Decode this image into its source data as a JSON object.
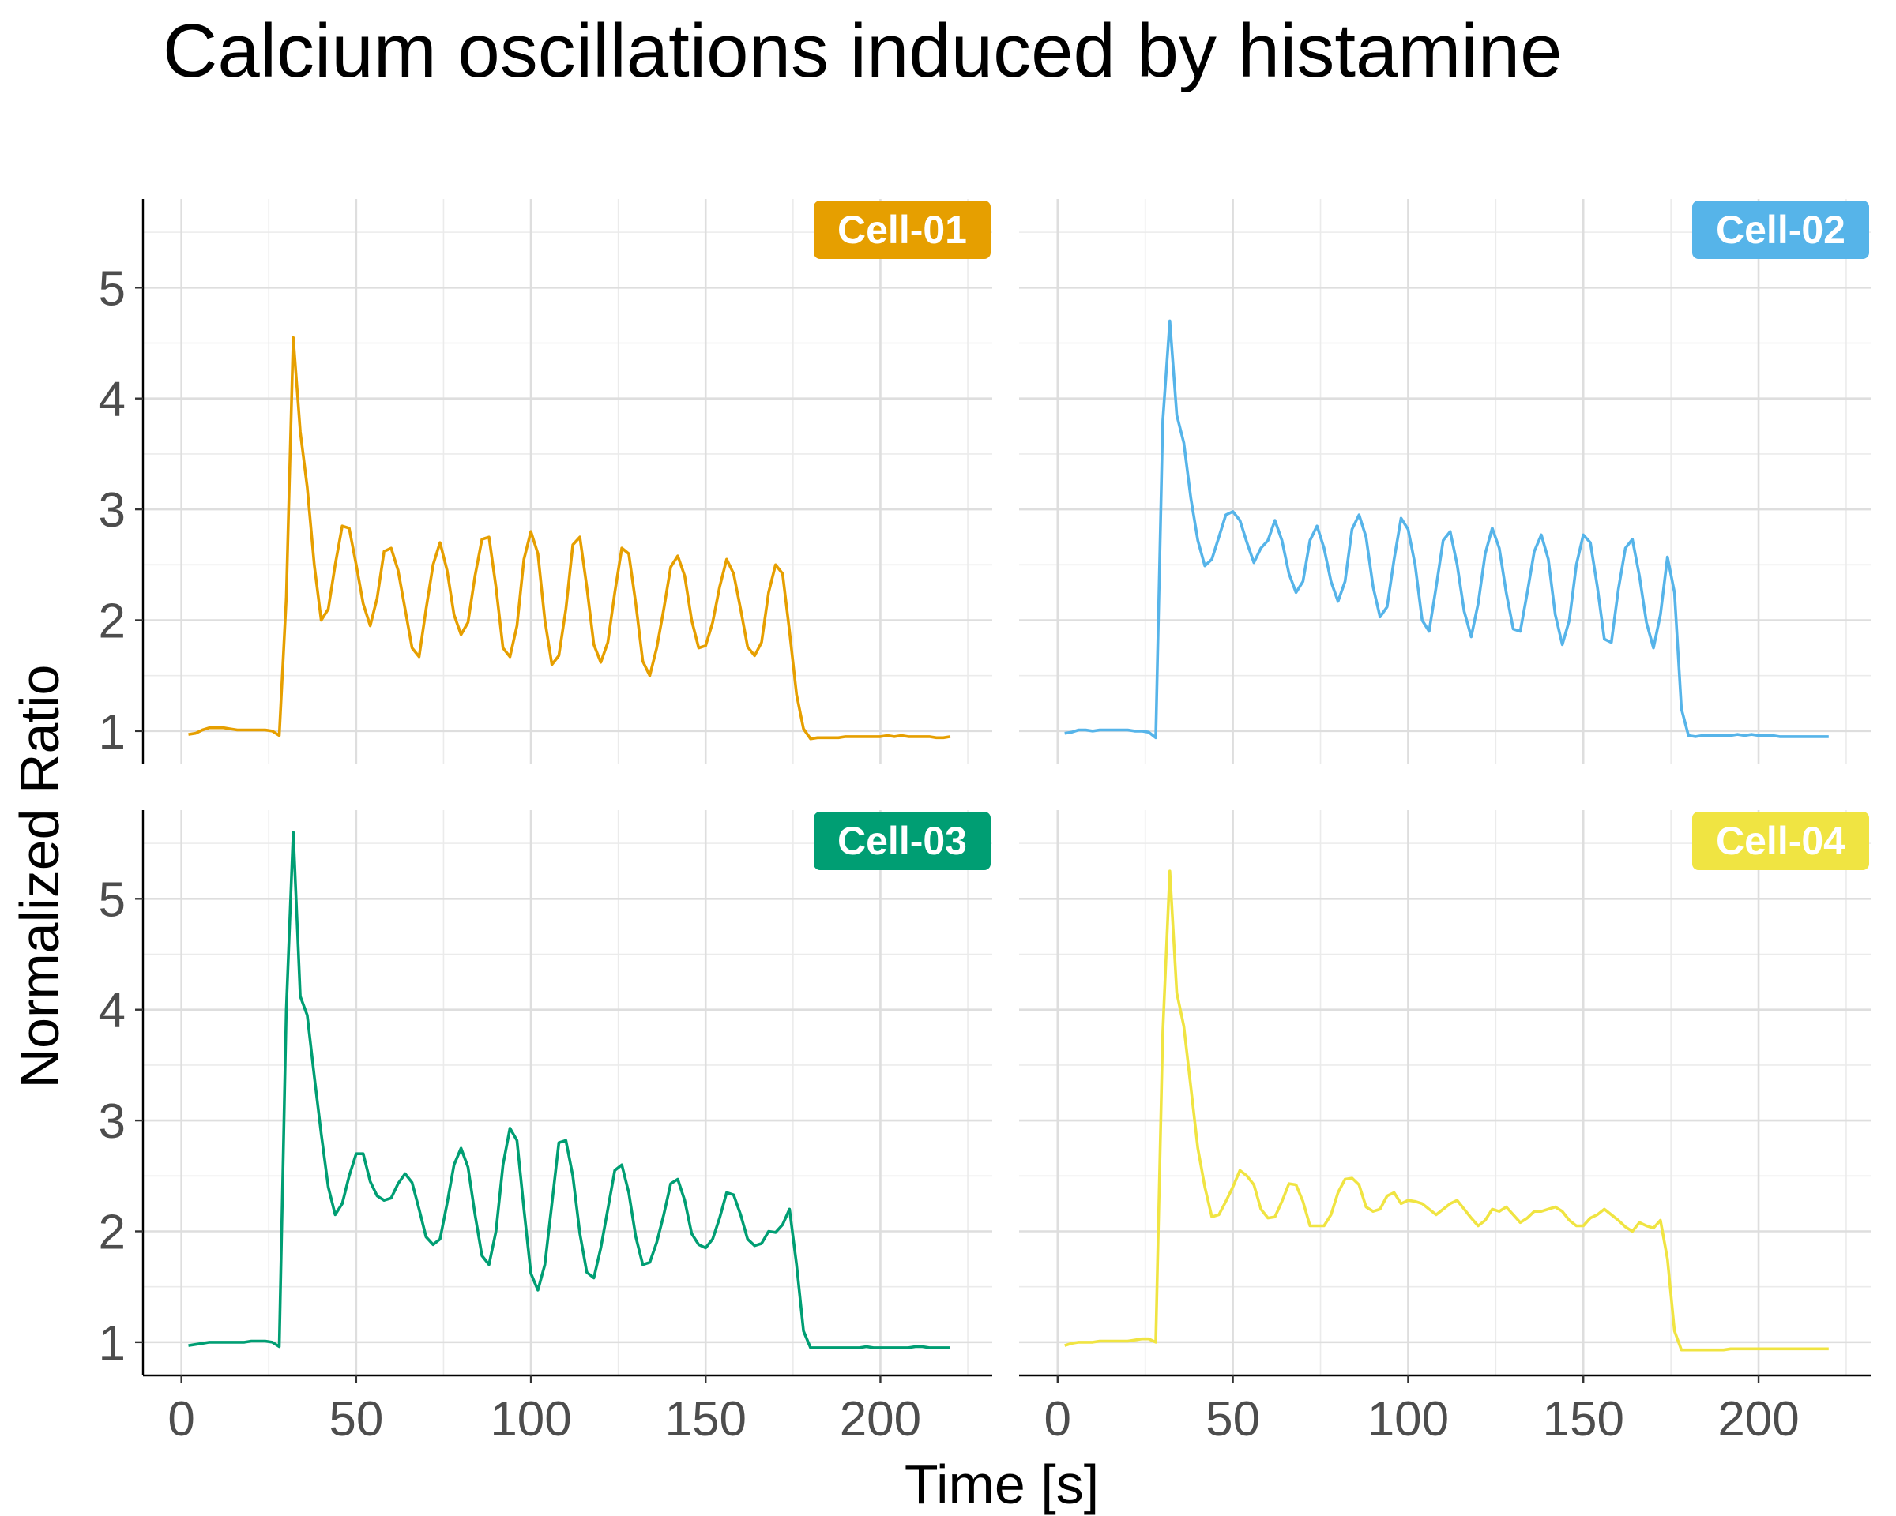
{
  "chart_data": {
    "type": "line",
    "title": "Calcium oscillations induced by histamine",
    "xlabel": "Time [s]",
    "ylabel": "Normalized Ratio",
    "xlim": [
      -11,
      232
    ],
    "ylim": [
      0.7,
      5.8
    ],
    "xticks": [
      0,
      50,
      100,
      150,
      200
    ],
    "yticks": [
      1,
      2,
      3,
      4,
      5
    ],
    "grid": true,
    "layout": "2x2 facets, shared axes",
    "panels": [
      {
        "name": "Cell-01",
        "color": "#E69F00",
        "x": [
          2,
          4,
          6,
          8,
          10,
          12,
          14,
          16,
          18,
          20,
          22,
          24,
          26,
          28,
          30,
          32,
          34,
          36,
          38,
          40,
          42,
          44,
          46,
          48,
          50,
          52,
          54,
          56,
          58,
          60,
          62,
          64,
          66,
          68,
          70,
          72,
          74,
          76,
          78,
          80,
          82,
          84,
          86,
          88,
          90,
          92,
          94,
          96,
          98,
          100,
          102,
          104,
          106,
          108,
          110,
          112,
          114,
          116,
          118,
          120,
          122,
          124,
          126,
          128,
          130,
          132,
          134,
          136,
          138,
          140,
          142,
          144,
          146,
          148,
          150,
          152,
          154,
          156,
          158,
          160,
          162,
          164,
          166,
          168,
          170,
          172,
          174,
          176,
          178,
          180,
          182,
          184,
          186,
          188,
          190,
          192,
          194,
          196,
          198,
          200,
          202,
          204,
          206,
          208,
          210,
          212,
          214,
          216,
          218,
          220
        ],
        "y": [
          0.97,
          0.98,
          1.01,
          1.03,
          1.03,
          1.03,
          1.02,
          1.01,
          1.01,
          1.01,
          1.01,
          1.01,
          1.0,
          0.96,
          2.2,
          4.55,
          3.7,
          3.2,
          2.5,
          2.0,
          2.1,
          2.5,
          2.85,
          2.83,
          2.5,
          2.15,
          1.95,
          2.2,
          2.62,
          2.65,
          2.45,
          2.1,
          1.75,
          1.67,
          2.1,
          2.5,
          2.7,
          2.45,
          2.05,
          1.87,
          1.98,
          2.4,
          2.73,
          2.75,
          2.3,
          1.75,
          1.67,
          1.95,
          2.55,
          2.8,
          2.6,
          2.0,
          1.6,
          1.68,
          2.1,
          2.68,
          2.75,
          2.3,
          1.78,
          1.62,
          1.8,
          2.25,
          2.65,
          2.6,
          2.15,
          1.63,
          1.5,
          1.75,
          2.1,
          2.48,
          2.58,
          2.4,
          2.0,
          1.75,
          1.77,
          1.98,
          2.3,
          2.55,
          2.42,
          2.1,
          1.76,
          1.68,
          1.8,
          2.25,
          2.5,
          2.42,
          1.9,
          1.33,
          1.02,
          0.93,
          0.94,
          0.94,
          0.94,
          0.94,
          0.95,
          0.95,
          0.95,
          0.95,
          0.95,
          0.95,
          0.96,
          0.95,
          0.96,
          0.95,
          0.95,
          0.95,
          0.95,
          0.94,
          0.94,
          0.95
        ]
      },
      {
        "name": "Cell-02",
        "color": "#56B4E9",
        "x": [
          2,
          4,
          6,
          8,
          10,
          12,
          14,
          16,
          18,
          20,
          22,
          24,
          26,
          28,
          30,
          32,
          34,
          36,
          38,
          40,
          42,
          44,
          46,
          48,
          50,
          52,
          54,
          56,
          58,
          60,
          62,
          64,
          66,
          68,
          70,
          72,
          74,
          76,
          78,
          80,
          82,
          84,
          86,
          88,
          90,
          92,
          94,
          96,
          98,
          100,
          102,
          104,
          106,
          108,
          110,
          112,
          114,
          116,
          118,
          120,
          122,
          124,
          126,
          128,
          130,
          132,
          134,
          136,
          138,
          140,
          142,
          144,
          146,
          148,
          150,
          152,
          154,
          156,
          158,
          160,
          162,
          164,
          166,
          168,
          170,
          172,
          174,
          176,
          178,
          180,
          182,
          184,
          186,
          188,
          190,
          192,
          194,
          196,
          198,
          200,
          202,
          204,
          206,
          208,
          210,
          212,
          214,
          216,
          218,
          220
        ],
        "y": [
          0.98,
          0.99,
          1.01,
          1.01,
          1.0,
          1.01,
          1.01,
          1.01,
          1.01,
          1.01,
          1.0,
          1.0,
          0.99,
          0.94,
          3.8,
          4.7,
          3.85,
          3.6,
          3.1,
          2.72,
          2.49,
          2.55,
          2.75,
          2.95,
          2.98,
          2.9,
          2.7,
          2.52,
          2.65,
          2.72,
          2.9,
          2.72,
          2.42,
          2.25,
          2.35,
          2.72,
          2.85,
          2.65,
          2.35,
          2.17,
          2.35,
          2.82,
          2.95,
          2.75,
          2.3,
          2.03,
          2.12,
          2.55,
          2.92,
          2.82,
          2.5,
          2.0,
          1.9,
          2.3,
          2.72,
          2.8,
          2.5,
          2.08,
          1.85,
          2.15,
          2.6,
          2.83,
          2.65,
          2.25,
          1.92,
          1.9,
          2.25,
          2.62,
          2.77,
          2.55,
          2.05,
          1.78,
          2.0,
          2.5,
          2.77,
          2.7,
          2.3,
          1.83,
          1.8,
          2.28,
          2.65,
          2.73,
          2.4,
          1.98,
          1.75,
          2.05,
          2.57,
          2.25,
          1.2,
          0.96,
          0.95,
          0.96,
          0.96,
          0.96,
          0.96,
          0.96,
          0.97,
          0.96,
          0.97,
          0.96,
          0.96,
          0.96,
          0.95,
          0.95,
          0.95,
          0.95,
          0.95,
          0.95,
          0.95,
          0.95
        ]
      },
      {
        "name": "Cell-03",
        "color": "#009E73",
        "x": [
          2,
          4,
          6,
          8,
          10,
          12,
          14,
          16,
          18,
          20,
          22,
          24,
          26,
          28,
          30,
          32,
          34,
          36,
          38,
          40,
          42,
          44,
          46,
          48,
          50,
          52,
          54,
          56,
          58,
          60,
          62,
          64,
          66,
          68,
          70,
          72,
          74,
          76,
          78,
          80,
          82,
          84,
          86,
          88,
          90,
          92,
          94,
          96,
          98,
          100,
          102,
          104,
          106,
          108,
          110,
          112,
          114,
          116,
          118,
          120,
          122,
          124,
          126,
          128,
          130,
          132,
          134,
          136,
          138,
          140,
          142,
          144,
          146,
          148,
          150,
          152,
          154,
          156,
          158,
          160,
          162,
          164,
          166,
          168,
          170,
          172,
          174,
          176,
          178,
          180,
          182,
          184,
          186,
          188,
          190,
          192,
          194,
          196,
          198,
          200,
          202,
          204,
          206,
          208,
          210,
          212,
          214,
          216,
          218,
          220
        ],
        "y": [
          0.97,
          0.98,
          0.99,
          1.0,
          1.0,
          1.0,
          1.0,
          1.0,
          1.0,
          1.01,
          1.01,
          1.01,
          1.0,
          0.96,
          4.0,
          5.6,
          4.12,
          3.95,
          3.4,
          2.88,
          2.4,
          2.15,
          2.25,
          2.5,
          2.7,
          2.7,
          2.45,
          2.32,
          2.28,
          2.3,
          2.43,
          2.52,
          2.44,
          2.2,
          1.95,
          1.88,
          1.93,
          2.25,
          2.6,
          2.75,
          2.58,
          2.15,
          1.78,
          1.7,
          2.0,
          2.6,
          2.93,
          2.82,
          2.2,
          1.62,
          1.47,
          1.7,
          2.25,
          2.8,
          2.82,
          2.5,
          1.98,
          1.63,
          1.58,
          1.85,
          2.2,
          2.55,
          2.6,
          2.35,
          1.95,
          1.7,
          1.72,
          1.9,
          2.15,
          2.43,
          2.47,
          2.28,
          1.98,
          1.88,
          1.85,
          1.93,
          2.12,
          2.35,
          2.33,
          2.15,
          1.93,
          1.87,
          1.89,
          2.0,
          1.99,
          2.06,
          2.2,
          1.7,
          1.1,
          0.95,
          0.95,
          0.95,
          0.95,
          0.95,
          0.95,
          0.95,
          0.95,
          0.96,
          0.95,
          0.95,
          0.95,
          0.95,
          0.95,
          0.95,
          0.96,
          0.96,
          0.95,
          0.95,
          0.95,
          0.95
        ]
      },
      {
        "name": "Cell-04",
        "color": "#F0E442",
        "x": [
          2,
          4,
          6,
          8,
          10,
          12,
          14,
          16,
          18,
          20,
          22,
          24,
          26,
          28,
          30,
          32,
          34,
          36,
          38,
          40,
          42,
          44,
          46,
          48,
          50,
          52,
          54,
          56,
          58,
          60,
          62,
          64,
          66,
          68,
          70,
          72,
          74,
          76,
          78,
          80,
          82,
          84,
          86,
          88,
          90,
          92,
          94,
          96,
          98,
          100,
          102,
          104,
          106,
          108,
          110,
          112,
          114,
          116,
          118,
          120,
          122,
          124,
          126,
          128,
          130,
          132,
          134,
          136,
          138,
          140,
          142,
          144,
          146,
          148,
          150,
          152,
          154,
          156,
          158,
          160,
          162,
          164,
          166,
          168,
          170,
          172,
          174,
          176,
          178,
          180,
          182,
          184,
          186,
          188,
          190,
          192,
          194,
          196,
          198,
          200,
          202,
          204,
          206,
          208,
          210,
          212,
          214,
          216,
          218,
          220
        ],
        "y": [
          0.97,
          0.99,
          1.0,
          1.0,
          1.0,
          1.01,
          1.01,
          1.01,
          1.01,
          1.01,
          1.02,
          1.03,
          1.03,
          1.0,
          3.8,
          5.25,
          4.15,
          3.85,
          3.3,
          2.75,
          2.4,
          2.13,
          2.15,
          2.27,
          2.4,
          2.55,
          2.5,
          2.42,
          2.2,
          2.12,
          2.13,
          2.27,
          2.43,
          2.42,
          2.27,
          2.05,
          2.05,
          2.05,
          2.15,
          2.35,
          2.47,
          2.48,
          2.42,
          2.22,
          2.18,
          2.2,
          2.32,
          2.35,
          2.25,
          2.28,
          2.27,
          2.25,
          2.2,
          2.15,
          2.2,
          2.25,
          2.28,
          2.2,
          2.12,
          2.05,
          2.1,
          2.2,
          2.18,
          2.22,
          2.15,
          2.08,
          2.12,
          2.18,
          2.18,
          2.2,
          2.22,
          2.18,
          2.1,
          2.05,
          2.05,
          2.12,
          2.15,
          2.2,
          2.15,
          2.1,
          2.04,
          2.0,
          2.08,
          2.05,
          2.03,
          2.1,
          1.75,
          1.1,
          0.93,
          0.93,
          0.93,
          0.93,
          0.93,
          0.93,
          0.93,
          0.94,
          0.94,
          0.94,
          0.94,
          0.94,
          0.94,
          0.94,
          0.94,
          0.94,
          0.94,
          0.94,
          0.94,
          0.94,
          0.94,
          0.94
        ]
      }
    ]
  }
}
